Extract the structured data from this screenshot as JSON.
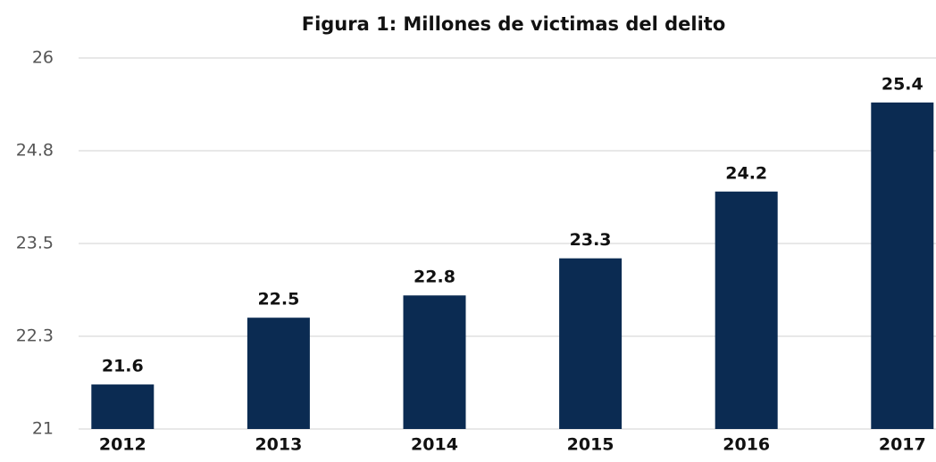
{
  "chart_data": {
    "type": "bar",
    "title": "Figura 1: Millones de victimas del delito",
    "categories": [
      "2012",
      "2013",
      "2014",
      "2015",
      "2016",
      "2017"
    ],
    "values": [
      21.6,
      22.5,
      22.8,
      23.3,
      24.2,
      25.4
    ],
    "color": "#0b2b52",
    "ylim": [
      21,
      26
    ],
    "yticks": [
      21,
      {
        "value": 22.25,
        "label": "22.3"
      },
      23.5,
      {
        "value": 24.75,
        "label": "24.8"
      },
      26
    ],
    "grid": true
  }
}
